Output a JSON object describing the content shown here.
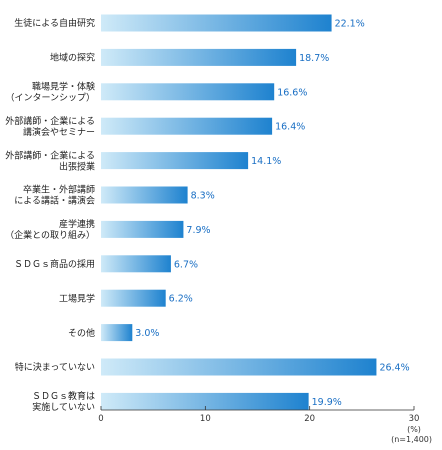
{
  "chart_data": {
    "type": "bar",
    "orientation": "horizontal",
    "categories": [
      [
        "生徒による自由研究"
      ],
      [
        "地域の探究"
      ],
      [
        "職場見学・体験",
        "（インターンシップ）"
      ],
      [
        "外部講師・企業による",
        "講演会やセミナー"
      ],
      [
        "外部講師・企業による",
        "出張授業"
      ],
      [
        "卒業生・外部講師",
        "による講話・講演会"
      ],
      [
        "産学連携",
        "（企業との取り組み）"
      ],
      [
        "ＳＤＧｓ商品の採用"
      ],
      [
        "工場見学"
      ],
      [
        "その他"
      ],
      [
        "特に決まっていない"
      ],
      [
        "ＳＤＧｓ教育は",
        "実施していない"
      ]
    ],
    "values": [
      22.1,
      18.7,
      16.6,
      16.4,
      14.1,
      8.3,
      7.9,
      6.7,
      6.2,
      3.0,
      26.4,
      19.9
    ],
    "value_labels": [
      "22.1%",
      "18.7%",
      "16.6%",
      "16.4%",
      "14.1%",
      "8.3%",
      "7.9%",
      "6.7%",
      "6.2%",
      "3.0%",
      "26.4%",
      "19.9%"
    ],
    "xlim": [
      0,
      30
    ],
    "xticks": [
      "0",
      "10",
      "20",
      "30"
    ],
    "unit_label": "(%)",
    "n_label": "(n=1,400)",
    "grid": false,
    "colors": {
      "bar_start": "#cfeaf8",
      "bar_end": "#1e82cf",
      "value_text": "#1a6fc4",
      "axis": "#333333"
    }
  }
}
